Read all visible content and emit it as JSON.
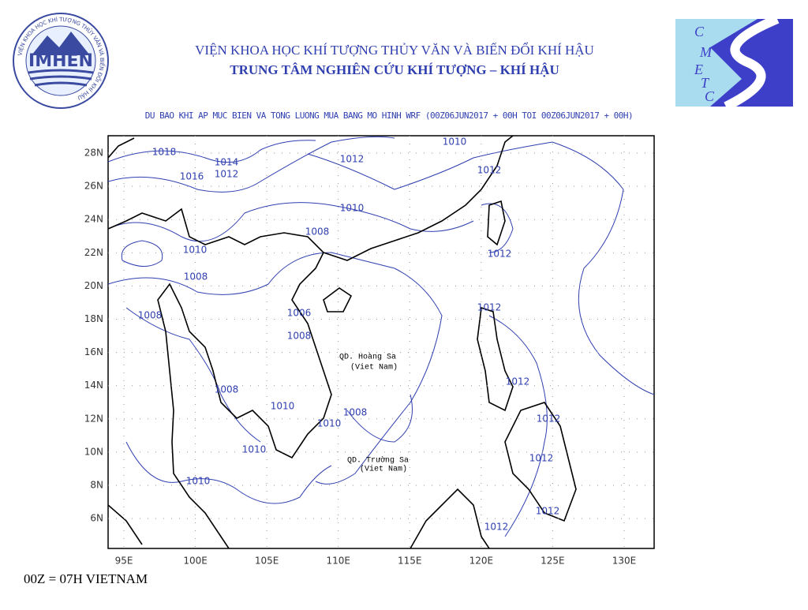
{
  "header": {
    "logo_left_ring": "VIỆN KHOA HỌC KHÍ TƯỢNG THỦY VĂN VÀ BIẾN ĐỔI KHÍ HẬU",
    "logo_left_text": "IMHEN",
    "title_line1": "VIỆN KHOA HỌC KHÍ TƯỢNG THỦY VĂN VÀ BIẾN ĐỔI KHÍ HẬU",
    "title_line2": "TRUNG TÂM NGHIÊN CỨU KHÍ TƯỢNG – KHÍ HẬU",
    "logo_right_letters": [
      "C",
      "M",
      "E",
      "T",
      "C"
    ]
  },
  "subtitle": "DU BAO KHI AP MUC BIEN VA TONG LUONG MUA BANG MO HINH WRF (00Z06JUN2017 + 00H TOI 00Z06JUN2017 + 00H)",
  "map": {
    "xticks": [
      "95E",
      "100E",
      "105E",
      "110E",
      "115E",
      "120E",
      "125E",
      "130E"
    ],
    "yticks": [
      "28N",
      "26N",
      "24N",
      "22N",
      "20N",
      "18N",
      "16N",
      "14N",
      "12N",
      "10N",
      "8N",
      "6N"
    ],
    "contour_labels": [
      "1018",
      "1014",
      "1016",
      "1012",
      "1010",
      "1012",
      "1012",
      "1010",
      "1008",
      "1010",
      "1012",
      "1008",
      "1006",
      "1012",
      "1008",
      "1008",
      "1012",
      "1008",
      "1010",
      "1008",
      "1010",
      "1012",
      "1010",
      "1012",
      "1010",
      "1012",
      "1012"
    ],
    "annotations": [
      "QD. Hoàng Sa",
      "(Viet Nam)",
      "QD. Trường Sa",
      "(Viet Nam)"
    ]
  },
  "footer": "00Z = 07H VIETNAM"
}
